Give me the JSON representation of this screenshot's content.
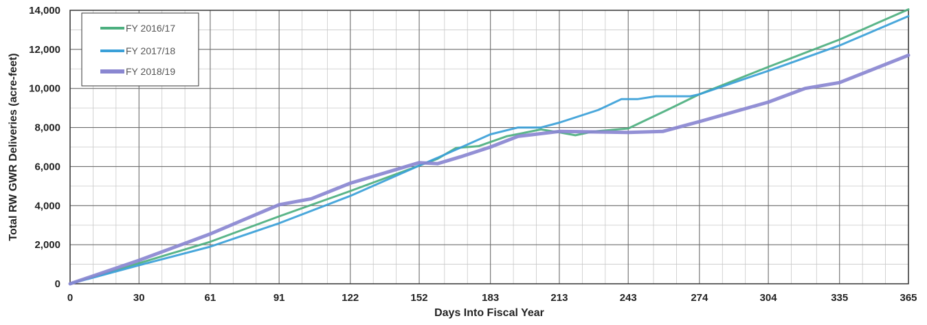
{
  "chart_data": {
    "type": "line",
    "xlabel": "Days Into Fiscal Year",
    "ylabel": "Total RW GWR Deliveries (acre-feet)",
    "xlim": [
      0,
      365
    ],
    "ylim": [
      0,
      14000
    ],
    "x_ticks": [
      0,
      30,
      61,
      91,
      122,
      152,
      183,
      213,
      243,
      274,
      304,
      335,
      365
    ],
    "x_tick_labels": [
      "0",
      "30",
      "61",
      "91",
      "122",
      "152",
      "183",
      "213",
      "243",
      "274",
      "304",
      "335",
      "365"
    ],
    "y_ticks": [
      0,
      2000,
      4000,
      6000,
      8000,
      10000,
      12000,
      14000
    ],
    "y_tick_labels": [
      "0",
      "2,000",
      "4,000",
      "6,000",
      "8,000",
      "10,000",
      "12,000",
      "14,000"
    ],
    "x_minor_grid": [
      10,
      20,
      40,
      50,
      71,
      81,
      101,
      112,
      132,
      142,
      163,
      173,
      193,
      203,
      223,
      233,
      254,
      264,
      284,
      294,
      314,
      325,
      345,
      355
    ],
    "grid": true,
    "legend_position": "top-left",
    "series": [
      {
        "name": "FY 2016/17",
        "color": "#4caf7f",
        "points": [
          [
            0,
            0
          ],
          [
            30,
            1050
          ],
          [
            61,
            2150
          ],
          [
            91,
            3450
          ],
          [
            122,
            4750
          ],
          [
            152,
            6050
          ],
          [
            160,
            6400
          ],
          [
            168,
            6950
          ],
          [
            178,
            7050
          ],
          [
            190,
            7550
          ],
          [
            205,
            7900
          ],
          [
            213,
            7750
          ],
          [
            220,
            7600
          ],
          [
            228,
            7800
          ],
          [
            243,
            7950
          ],
          [
            260,
            8900
          ],
          [
            274,
            9700
          ],
          [
            304,
            11100
          ],
          [
            335,
            12500
          ],
          [
            365,
            14050
          ]
        ]
      },
      {
        "name": "FY 2017/18",
        "color": "#3aa0d8",
        "points": [
          [
            0,
            0
          ],
          [
            30,
            950
          ],
          [
            61,
            1900
          ],
          [
            91,
            3100
          ],
          [
            122,
            4500
          ],
          [
            152,
            6050
          ],
          [
            160,
            6450
          ],
          [
            183,
            7650
          ],
          [
            195,
            8000
          ],
          [
            205,
            8000
          ],
          [
            213,
            8250
          ],
          [
            230,
            8900
          ],
          [
            240,
            9450
          ],
          [
            247,
            9450
          ],
          [
            255,
            9600
          ],
          [
            270,
            9600
          ],
          [
            274,
            9700
          ],
          [
            304,
            10900
          ],
          [
            335,
            12200
          ],
          [
            365,
            13700
          ]
        ]
      },
      {
        "name": "FY 2018/19",
        "color": "#8a87d1",
        "points": [
          [
            0,
            0
          ],
          [
            30,
            1200
          ],
          [
            61,
            2550
          ],
          [
            91,
            4050
          ],
          [
            105,
            4350
          ],
          [
            122,
            5150
          ],
          [
            152,
            6200
          ],
          [
            160,
            6150
          ],
          [
            170,
            6500
          ],
          [
            183,
            7000
          ],
          [
            195,
            7550
          ],
          [
            213,
            7800
          ],
          [
            243,
            7750
          ],
          [
            258,
            7800
          ],
          [
            274,
            8300
          ],
          [
            304,
            9300
          ],
          [
            320,
            10000
          ],
          [
            335,
            10300
          ],
          [
            365,
            11700
          ]
        ]
      }
    ]
  }
}
